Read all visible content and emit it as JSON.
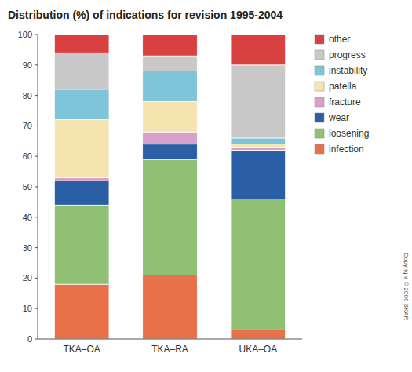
{
  "chart_data": {
    "type": "bar",
    "stacked": true,
    "title": "Distribution (%) of indications for revision 1995-2004",
    "categories": [
      "TKA–OA",
      "TKA–RA",
      "UKA–OA"
    ],
    "series": [
      {
        "name": "infection",
        "color": "#e8714a",
        "values": [
          18,
          21,
          3
        ]
      },
      {
        "name": "loosening",
        "color": "#8fc074",
        "values": [
          26,
          38,
          43
        ]
      },
      {
        "name": "wear",
        "color": "#2a5fa5",
        "values": [
          8,
          5,
          16
        ]
      },
      {
        "name": "fracture",
        "color": "#d8a0c8",
        "values": [
          1,
          4,
          1
        ]
      },
      {
        "name": "patella",
        "color": "#f5e4b0",
        "values": [
          19,
          10,
          1
        ]
      },
      {
        "name": "instability",
        "color": "#7fc4d8",
        "values": [
          10,
          10,
          2
        ]
      },
      {
        "name": "progress",
        "color": "#c8c8c8",
        "values": [
          12,
          5,
          24
        ]
      },
      {
        "name": "other",
        "color": "#d94040",
        "values": [
          6,
          7,
          10
        ]
      }
    ],
    "ylim": [
      0,
      100
    ],
    "yticks": [
      0,
      10,
      20,
      30,
      40,
      50,
      60,
      70,
      80,
      90,
      100
    ],
    "grid": false,
    "legend": "right",
    "annotations": [
      "Copyright © 2006 SKAR"
    ]
  }
}
